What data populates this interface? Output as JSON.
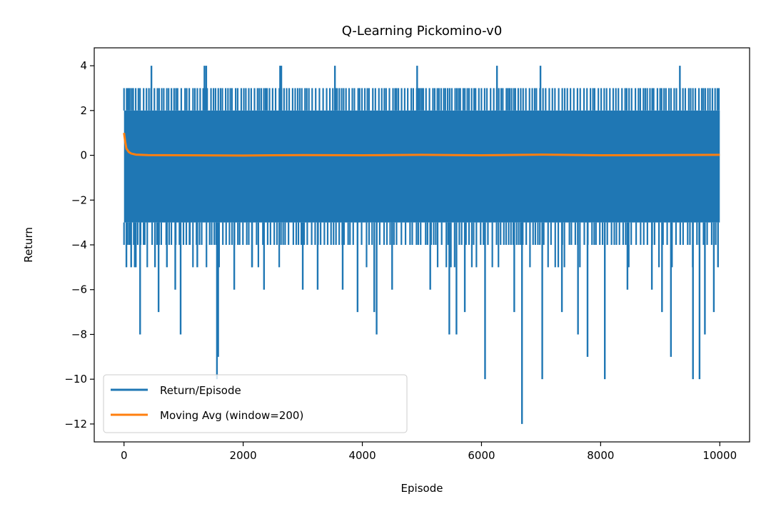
{
  "chart_data": {
    "type": "line",
    "title": "Q-Learning Pickomino-v0",
    "xlabel": "Episode",
    "ylabel": "Return",
    "xlim": [
      -500,
      10500
    ],
    "ylim": [
      -12.8,
      4.8
    ],
    "grid": false,
    "legend_placement": "lower-left",
    "xticks": [
      0,
      2000,
      4000,
      6000,
      8000,
      10000
    ],
    "xtick_labels": [
      "0",
      "2000",
      "4000",
      "6000",
      "8000",
      "10000"
    ],
    "yticks": [
      4,
      2,
      0,
      -2,
      -4,
      -6,
      -8,
      -10,
      -12
    ],
    "ytick_labels": [
      "4",
      "2",
      "0",
      "−2",
      "−4",
      "−6",
      "−8",
      "−10",
      "−12"
    ],
    "colors": {
      "return": "#1f77b4",
      "moving_avg": "#ff7f0e"
    },
    "series": [
      {
        "name": "Return/Episode",
        "episodes": 10000,
        "dense_band": [
          -3,
          2
        ],
        "frequent_spikes_high": 3,
        "spikes": [
          {
            "x": 40,
            "y": -5
          },
          {
            "x": 70,
            "y": 3
          },
          {
            "x": 90,
            "y": -4
          },
          {
            "x": 120,
            "y": -5
          },
          {
            "x": 150,
            "y": 3
          },
          {
            "x": 180,
            "y": -5
          },
          {
            "x": 270,
            "y": -8
          },
          {
            "x": 330,
            "y": -4
          },
          {
            "x": 460,
            "y": 4
          },
          {
            "x": 520,
            "y": -5
          },
          {
            "x": 580,
            "y": -7
          },
          {
            "x": 720,
            "y": -5
          },
          {
            "x": 860,
            "y": -6
          },
          {
            "x": 950,
            "y": -8
          },
          {
            "x": 1100,
            "y": -4
          },
          {
            "x": 1230,
            "y": -5
          },
          {
            "x": 1350,
            "y": 4
          },
          {
            "x": 1380,
            "y": 4
          },
          {
            "x": 1560,
            "y": -10
          },
          {
            "x": 1580,
            "y": -9
          },
          {
            "x": 1850,
            "y": -6
          },
          {
            "x": 2150,
            "y": -5
          },
          {
            "x": 2350,
            "y": -6
          },
          {
            "x": 2620,
            "y": 4
          },
          {
            "x": 2640,
            "y": 4
          },
          {
            "x": 3000,
            "y": -6
          },
          {
            "x": 3250,
            "y": -6
          },
          {
            "x": 3540,
            "y": 4
          },
          {
            "x": 3670,
            "y": -6
          },
          {
            "x": 3920,
            "y": -7
          },
          {
            "x": 4200,
            "y": -7
          },
          {
            "x": 4240,
            "y": -8
          },
          {
            "x": 4500,
            "y": -6
          },
          {
            "x": 4920,
            "y": 4
          },
          {
            "x": 5140,
            "y": -6
          },
          {
            "x": 5460,
            "y": -8
          },
          {
            "x": 5580,
            "y": -8
          },
          {
            "x": 5720,
            "y": -7
          },
          {
            "x": 6060,
            "y": -10
          },
          {
            "x": 6260,
            "y": 4
          },
          {
            "x": 6550,
            "y": -7
          },
          {
            "x": 6680,
            "y": -12
          },
          {
            "x": 6990,
            "y": 4
          },
          {
            "x": 7020,
            "y": -10
          },
          {
            "x": 7350,
            "y": -7
          },
          {
            "x": 7620,
            "y": -8
          },
          {
            "x": 7780,
            "y": -9
          },
          {
            "x": 8070,
            "y": -10
          },
          {
            "x": 8450,
            "y": -6
          },
          {
            "x": 8860,
            "y": -6
          },
          {
            "x": 9030,
            "y": -7
          },
          {
            "x": 9180,
            "y": -9
          },
          {
            "x": 9330,
            "y": 4
          },
          {
            "x": 9550,
            "y": -10
          },
          {
            "x": 9660,
            "y": -10
          },
          {
            "x": 9750,
            "y": -8
          },
          {
            "x": 9900,
            "y": -7
          },
          {
            "x": 9970,
            "y": -5
          }
        ]
      },
      {
        "name": "Moving Avg (window=200)",
        "x": [
          0,
          20,
          40,
          80,
          120,
          200,
          400,
          1000,
          2000,
          3000,
          4000,
          5000,
          6000,
          7000,
          8000,
          9000,
          10000
        ],
        "y": [
          1.0,
          0.6,
          0.3,
          0.15,
          0.08,
          0.03,
          0.01,
          0.0,
          -0.01,
          0.01,
          0.0,
          0.02,
          0.0,
          0.03,
          0.0,
          0.01,
          0.02
        ]
      }
    ]
  }
}
